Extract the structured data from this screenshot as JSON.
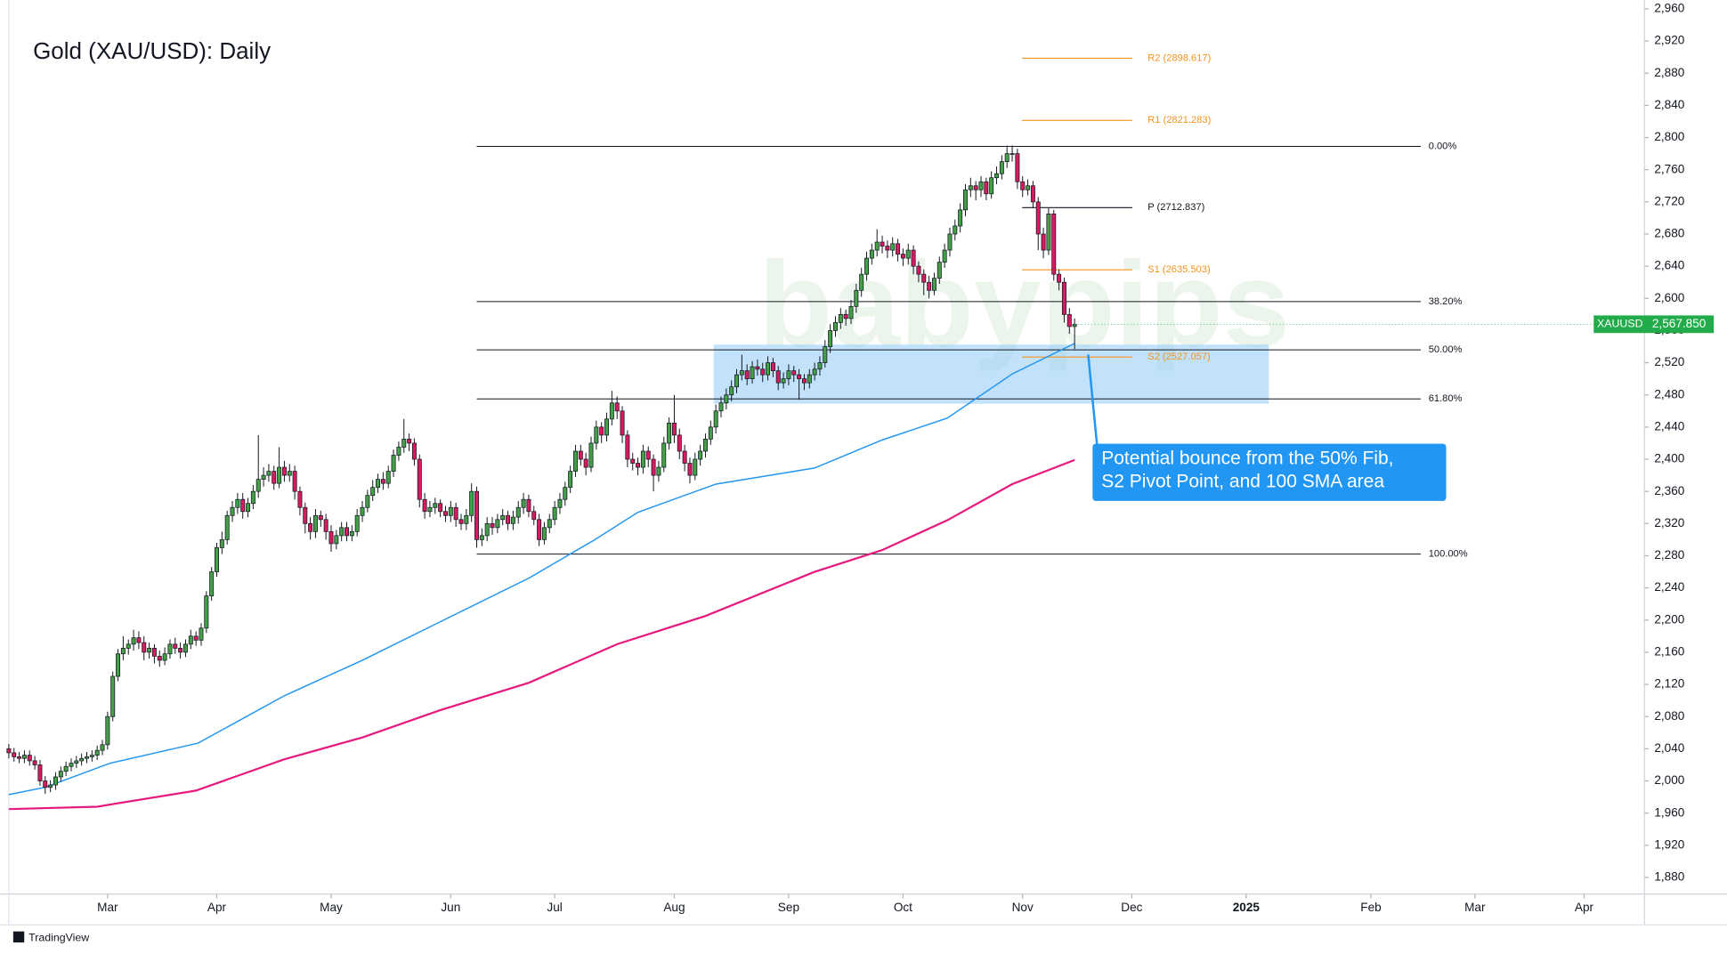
{
  "chart_data": {
    "type": "candlestick",
    "title": "Gold (XAU/USD): Daily",
    "watermark": "babypips",
    "footer": "TradingView",
    "xlim": [
      0,
      314.6
    ],
    "xticks": [
      {
        "value": 19,
        "label": "Mar"
      },
      {
        "value": 40,
        "label": "Apr"
      },
      {
        "value": 62,
        "label": "May"
      },
      {
        "value": 85,
        "label": "Jun"
      },
      {
        "value": 105,
        "label": "Jul"
      },
      {
        "value": 128,
        "label": "Aug"
      },
      {
        "value": 150,
        "label": "Sep"
      },
      {
        "value": 172,
        "label": "Oct"
      },
      {
        "value": 195,
        "label": "Nov"
      },
      {
        "value": 216,
        "label": "Dec"
      },
      {
        "value": 238,
        "label": "2025"
      },
      {
        "value": 262,
        "label": "Feb"
      },
      {
        "value": 282,
        "label": "Mar"
      },
      {
        "value": 303,
        "label": "Apr"
      }
    ],
    "ylim": [
      1859.4,
      2971
    ],
    "yticks": [
      {
        "value": 1880,
        "label": "1,880"
      },
      {
        "value": 1920,
        "label": "1,920"
      },
      {
        "value": 1960,
        "label": "1,960"
      },
      {
        "value": 2000,
        "label": "2,000"
      },
      {
        "value": 2040,
        "label": "2,040"
      },
      {
        "value": 2080,
        "label": "2,080"
      },
      {
        "value": 2120,
        "label": "2,120"
      },
      {
        "value": 2160,
        "label": "2,160"
      },
      {
        "value": 2200,
        "label": "2,200"
      },
      {
        "value": 2240,
        "label": "2,240"
      },
      {
        "value": 2280,
        "label": "2,280"
      },
      {
        "value": 2320,
        "label": "2,320"
      },
      {
        "value": 2360,
        "label": "2,360"
      },
      {
        "value": 2400,
        "label": "2,400"
      },
      {
        "value": 2440,
        "label": "2,440"
      },
      {
        "value": 2480,
        "label": "2,480"
      },
      {
        "value": 2520,
        "label": "2,520"
      },
      {
        "value": 2560,
        "label": "2,560"
      },
      {
        "value": 2600,
        "label": "2,600"
      },
      {
        "value": 2640,
        "label": "2,640"
      },
      {
        "value": 2680,
        "label": "2,680"
      },
      {
        "value": 2720,
        "label": "2,720"
      },
      {
        "value": 2760,
        "label": "2,760"
      },
      {
        "value": 2800,
        "label": "2,800"
      },
      {
        "value": 2840,
        "label": "2,840"
      },
      {
        "value": 2880,
        "label": "2,880"
      },
      {
        "value": 2920,
        "label": "2,920"
      },
      {
        "value": 2960,
        "label": "2,960"
      }
    ],
    "grid": false,
    "series": [
      {
        "name": "XAUUSD",
        "up_color": "#43a047",
        "down_color": "#d81b60",
        "last_label": "2,567.850",
        "tag_color": "#22ab4a",
        "open": [
          2040,
          2035,
          2030,
          2028,
          2032,
          2025,
          2020,
          2000,
          1992,
          1995,
          2005,
          2012,
          2018,
          2022,
          2025,
          2028,
          2030,
          2032,
          2038,
          2045,
          2080,
          2130,
          2158,
          2165,
          2170,
          2178,
          2172,
          2160,
          2165,
          2155,
          2150,
          2158,
          2170,
          2165,
          2160,
          2170,
          2180,
          2175,
          2190,
          2230,
          2260,
          2290,
          2300,
          2330,
          2340,
          2350,
          2335,
          2345,
          2360,
          2375,
          2380,
          2385,
          2370,
          2390,
          2380,
          2385,
          2360,
          2340,
          2320,
          2310,
          2330,
          2325,
          2310,
          2295,
          2305,
          2315,
          2305,
          2310,
          2330,
          2340,
          2355,
          2365,
          2375,
          2370,
          2385,
          2405,
          2415,
          2425,
          2420,
          2400,
          2350,
          2335,
          2340,
          2345,
          2335,
          2330,
          2340,
          2325,
          2320,
          2330,
          2360,
          2300,
          2305,
          2320,
          2315,
          2325,
          2330,
          2320,
          2328,
          2340,
          2350,
          2335,
          2325,
          2300,
          2315,
          2325,
          2340,
          2350,
          2365,
          2385,
          2410,
          2400,
          2390,
          2420,
          2440,
          2430,
          2450,
          2470,
          2460,
          2430,
          2400,
          2395,
          2390,
          2410,
          2400,
          2380,
          2390,
          2420,
          2445,
          2430,
          2410,
          2395,
          2380,
          2400,
          2410,
          2425,
          2440,
          2460,
          2470,
          2480,
          2490,
          2505,
          2510,
          2500,
          2515,
          2512,
          2505,
          2520,
          2510,
          2495,
          2500,
          2510,
          2505,
          2500,
          2495,
          2505,
          2512,
          2520,
          2540,
          2560,
          2570,
          2580,
          2575,
          2590,
          2610,
          2630,
          2650,
          2660,
          2670,
          2665,
          2660,
          2668,
          2655,
          2650,
          2660,
          2640,
          2630,
          2620,
          2610,
          2625,
          2645,
          2660,
          2680,
          2690,
          2710,
          2735,
          2740,
          2735,
          2745,
          2730,
          2750,
          2755,
          2770,
          2780,
          2780,
          2745,
          2735,
          2740,
          2720,
          2680,
          2660,
          2705,
          2630,
          2620,
          2580,
          2565
        ],
        "high": [
          2046,
          2041,
          2036,
          2038,
          2038,
          2031,
          2026,
          2006,
          2001,
          2011,
          2018,
          2024,
          2028,
          2031,
          2034,
          2036,
          2038,
          2044,
          2051,
          2086,
          2136,
          2164,
          2180,
          2176,
          2188,
          2186,
          2180,
          2172,
          2170,
          2162,
          2166,
          2176,
          2178,
          2172,
          2176,
          2188,
          2186,
          2196,
          2236,
          2266,
          2296,
          2310,
          2336,
          2348,
          2358,
          2358,
          2352,
          2368,
          2430,
          2390,
          2394,
          2392,
          2415,
          2398,
          2394,
          2392,
          2366,
          2346,
          2328,
          2338,
          2336,
          2332,
          2318,
          2312,
          2322,
          2322,
          2318,
          2338,
          2348,
          2362,
          2374,
          2382,
          2384,
          2392,
          2412,
          2422,
          2450,
          2432,
          2426,
          2406,
          2358,
          2348,
          2352,
          2350,
          2342,
          2348,
          2346,
          2332,
          2338,
          2370,
          2366,
          2314,
          2328,
          2328,
          2332,
          2338,
          2336,
          2336,
          2348,
          2358,
          2356,
          2342,
          2332,
          2322,
          2332,
          2348,
          2358,
          2372,
          2392,
          2418,
          2418,
          2408,
          2428,
          2448,
          2446,
          2458,
          2485,
          2478,
          2466,
          2436,
          2408,
          2402,
          2418,
          2416,
          2406,
          2398,
          2428,
          2452,
          2480,
          2438,
          2418,
          2402,
          2408,
          2418,
          2432,
          2448,
          2468,
          2478,
          2488,
          2498,
          2512,
          2530,
          2518,
          2522,
          2524,
          2520,
          2528,
          2526,
          2516,
          2508,
          2518,
          2516,
          2512,
          2506,
          2512,
          2520,
          2528,
          2548,
          2568,
          2578,
          2588,
          2586,
          2598,
          2618,
          2638,
          2658,
          2668,
          2686,
          2678,
          2672,
          2676,
          2674,
          2662,
          2668,
          2666,
          2646,
          2636,
          2628,
          2632,
          2652,
          2668,
          2688,
          2698,
          2718,
          2742,
          2750,
          2746,
          2752,
          2750,
          2758,
          2764,
          2778,
          2790,
          2790,
          2786,
          2752,
          2748,
          2746,
          2726,
          2688,
          2712,
          2710,
          2636,
          2626,
          2588,
          2575
        ],
        "low": [
          2028,
          2024,
          2022,
          2022,
          2019,
          2014,
          1994,
          1984,
          1986,
          1989,
          1999,
          2006,
          2012,
          2016,
          2019,
          2022,
          2024,
          2026,
          2032,
          2039,
          2074,
          2124,
          2150,
          2157,
          2162,
          2164,
          2150,
          2152,
          2146,
          2142,
          2144,
          2152,
          2158,
          2152,
          2154,
          2164,
          2168,
          2168,
          2184,
          2224,
          2254,
          2282,
          2294,
          2322,
          2332,
          2326,
          2328,
          2338,
          2352,
          2366,
          2372,
          2362,
          2364,
          2372,
          2372,
          2350,
          2330,
          2308,
          2300,
          2302,
          2316,
          2300,
          2285,
          2288,
          2298,
          2298,
          2298,
          2304,
          2322,
          2334,
          2348,
          2358,
          2362,
          2364,
          2378,
          2398,
          2408,
          2410,
          2392,
          2340,
          2326,
          2328,
          2332,
          2328,
          2322,
          2322,
          2316,
          2312,
          2312,
          2322,
          2290,
          2292,
          2298,
          2306,
          2308,
          2318,
          2312,
          2312,
          2320,
          2332,
          2328,
          2318,
          2292,
          2294,
          2308,
          2318,
          2332,
          2342,
          2358,
          2378,
          2392,
          2380,
          2384,
          2412,
          2420,
          2422,
          2442,
          2450,
          2420,
          2390,
          2386,
          2380,
          2382,
          2390,
          2360,
          2372,
          2384,
          2412,
          2420,
          2400,
          2385,
          2370,
          2374,
          2392,
          2402,
          2418,
          2432,
          2452,
          2462,
          2472,
          2482,
          2498,
          2492,
          2494,
          2504,
          2496,
          2498,
          2502,
          2486,
          2488,
          2492,
          2496,
          2474,
          2486,
          2488,
          2498,
          2504,
          2514,
          2532,
          2552,
          2562,
          2566,
          2568,
          2582,
          2602,
          2622,
          2642,
          2652,
          2656,
          2650,
          2652,
          2646,
          2640,
          2642,
          2630,
          2620,
          2604,
          2600,
          2604,
          2618,
          2638,
          2652,
          2672,
          2682,
          2702,
          2726,
          2722,
          2726,
          2722,
          2724,
          2742,
          2748,
          2762,
          2770,
          2736,
          2726,
          2728,
          2712,
          2660,
          2650,
          2654,
          2622,
          2610,
          2570,
          2556,
          2537
        ],
        "close": [
          2035,
          2030,
          2028,
          2032,
          2025,
          2020,
          2000,
          1992,
          1995,
          2005,
          2012,
          2018,
          2022,
          2025,
          2028,
          2030,
          2032,
          2038,
          2045,
          2080,
          2130,
          2158,
          2165,
          2170,
          2178,
          2172,
          2160,
          2165,
          2155,
          2150,
          2158,
          2170,
          2165,
          2160,
          2170,
          2180,
          2175,
          2190,
          2230,
          2260,
          2290,
          2300,
          2330,
          2340,
          2350,
          2335,
          2345,
          2360,
          2375,
          2380,
          2385,
          2370,
          2390,
          2380,
          2385,
          2360,
          2340,
          2320,
          2310,
          2330,
          2325,
          2310,
          2295,
          2305,
          2315,
          2305,
          2310,
          2330,
          2340,
          2355,
          2365,
          2375,
          2370,
          2385,
          2405,
          2415,
          2425,
          2420,
          2400,
          2350,
          2335,
          2340,
          2345,
          2335,
          2330,
          2340,
          2325,
          2320,
          2330,
          2360,
          2300,
          2305,
          2320,
          2315,
          2325,
          2330,
          2320,
          2328,
          2340,
          2350,
          2335,
          2325,
          2300,
          2315,
          2325,
          2340,
          2350,
          2365,
          2385,
          2410,
          2400,
          2390,
          2420,
          2440,
          2430,
          2450,
          2470,
          2460,
          2430,
          2400,
          2395,
          2390,
          2410,
          2400,
          2380,
          2390,
          2420,
          2445,
          2430,
          2410,
          2395,
          2380,
          2400,
          2410,
          2425,
          2440,
          2460,
          2470,
          2480,
          2490,
          2505,
          2510,
          2500,
          2515,
          2512,
          2505,
          2520,
          2510,
          2495,
          2500,
          2510,
          2505,
          2500,
          2495,
          2505,
          2512,
          2520,
          2540,
          2560,
          2570,
          2580,
          2575,
          2590,
          2610,
          2630,
          2650,
          2660,
          2670,
          2665,
          2660,
          2668,
          2655,
          2650,
          2660,
          2640,
          2630,
          2620,
          2610,
          2625,
          2645,
          2660,
          2680,
          2690,
          2710,
          2735,
          2740,
          2735,
          2745,
          2730,
          2750,
          2755,
          2770,
          2780,
          2780,
          2745,
          2735,
          2740,
          2720,
          2680,
          2660,
          2705,
          2630,
          2620,
          2580,
          2565,
          2567.85
        ]
      }
    ],
    "sma": [
      {
        "color": "#2196f3",
        "x": [
          0,
          7,
          19.5,
          36.4,
          53,
          68,
          83,
          100,
          112.7,
          121,
          136,
          155,
          168,
          180.5,
          193,
          205
        ],
        "values": [
          1983,
          1992,
          2022,
          2047,
          2106,
          2150,
          2198,
          2252,
          2300,
          2334,
          2369,
          2389,
          2424,
          2451,
          2506,
          2544
        ]
      },
      {
        "color": "#e6197d",
        "x": [
          0,
          17,
          36,
          53,
          68,
          83,
          100,
          117,
          134,
          155,
          168,
          180.5,
          193,
          205
        ],
        "values": [
          1965,
          1968,
          1988,
          2027,
          2054,
          2088,
          2122,
          2170,
          2205,
          2260,
          2287,
          2324,
          2369,
          2399
        ]
      }
    ],
    "fib": {
      "color": "#131722",
      "levels": [
        {
          "value": 2789,
          "label": "0.00%"
        },
        {
          "value": 2596,
          "label": "38.20%"
        },
        {
          "value": 2536,
          "label": "50.00%"
        },
        {
          "value": 2475,
          "label": "61.80%"
        },
        {
          "value": 2282,
          "label": "100.00%"
        }
      ]
    },
    "pivots": [
      {
        "value": 2898.617,
        "label": "R2 (2898.617)",
        "color": "#f7931a"
      },
      {
        "value": 2821.283,
        "label": "R1 (2821.283)",
        "color": "#f7931a"
      },
      {
        "value": 2712.837,
        "label": "P (2712.837)",
        "color": "#131722"
      },
      {
        "value": 2635.503,
        "label": "S1 (2635.503)",
        "color": "#f7931a"
      },
      {
        "value": 2527.057,
        "label": "S2 (2527.057)",
        "color": "#f7931a"
      }
    ],
    "zone": [
      2469,
      2542.5
    ],
    "zone_color": "#90caf9",
    "annotation": {
      "lines": [
        "Potential bounce from the 50% Fib,",
        "S2 Pivot Point, and 100 SMA area"
      ],
      "color": "#2196f3"
    }
  }
}
